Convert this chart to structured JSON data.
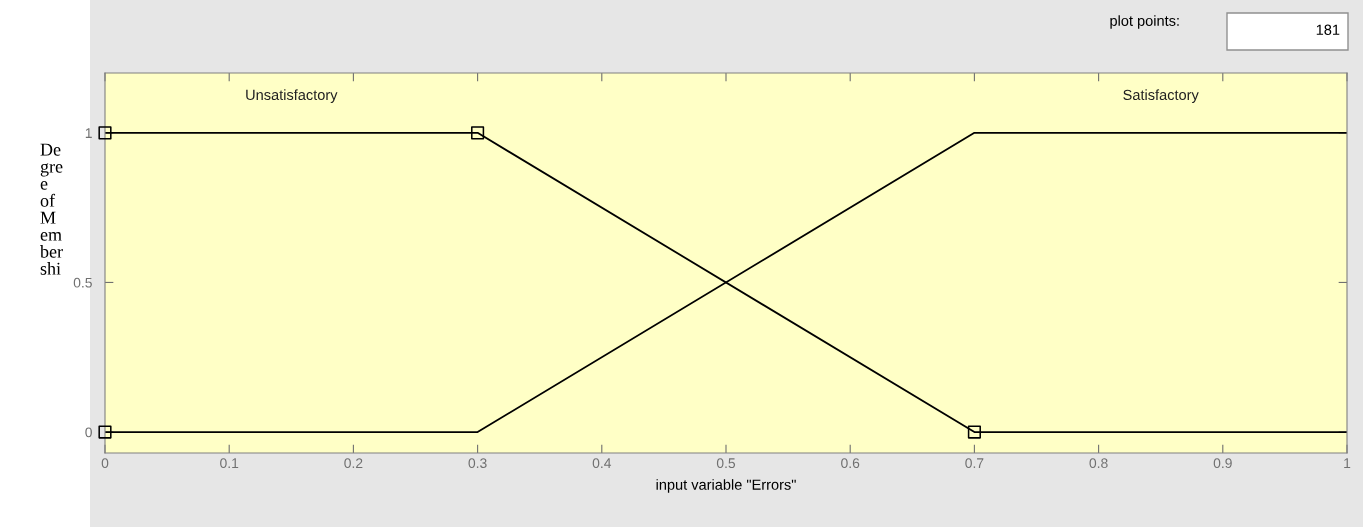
{
  "chart_data": {
    "type": "line",
    "ylabel": "Degree of Membershi",
    "xlabel": "input variable \"Errors\"",
    "annotations": [
      "plot points:",
      "181"
    ],
    "series": [
      {
        "name": "Unsatisfactory",
        "color": "#000000",
        "x": [
          0,
          0.3,
          0.7,
          1
        ],
        "values": [
          1,
          1,
          0,
          0
        ]
      },
      {
        "name": "Satisfactory",
        "color": "#000000",
        "x": [
          0,
          0.3,
          0.7,
          1
        ],
        "values": [
          0,
          0,
          1,
          1
        ]
      },
      {
        "type": "scatter",
        "color": "#000000",
        "marker": "square",
        "x": [
          0,
          0,
          0.3,
          0.7
        ],
        "values": [
          1,
          0,
          1,
          0
        ]
      }
    ],
    "xlim": [
      0,
      1
    ],
    "xticks": [
      0,
      0.1,
      0.2,
      0.3,
      0.4,
      0.5,
      0.6,
      0.7,
      0.8,
      0.9,
      1
    ],
    "ylim": [
      -0.07,
      1.2
    ],
    "yticks": [
      0,
      0.5,
      1
    ],
    "grid": false,
    "legend": false
  }
}
